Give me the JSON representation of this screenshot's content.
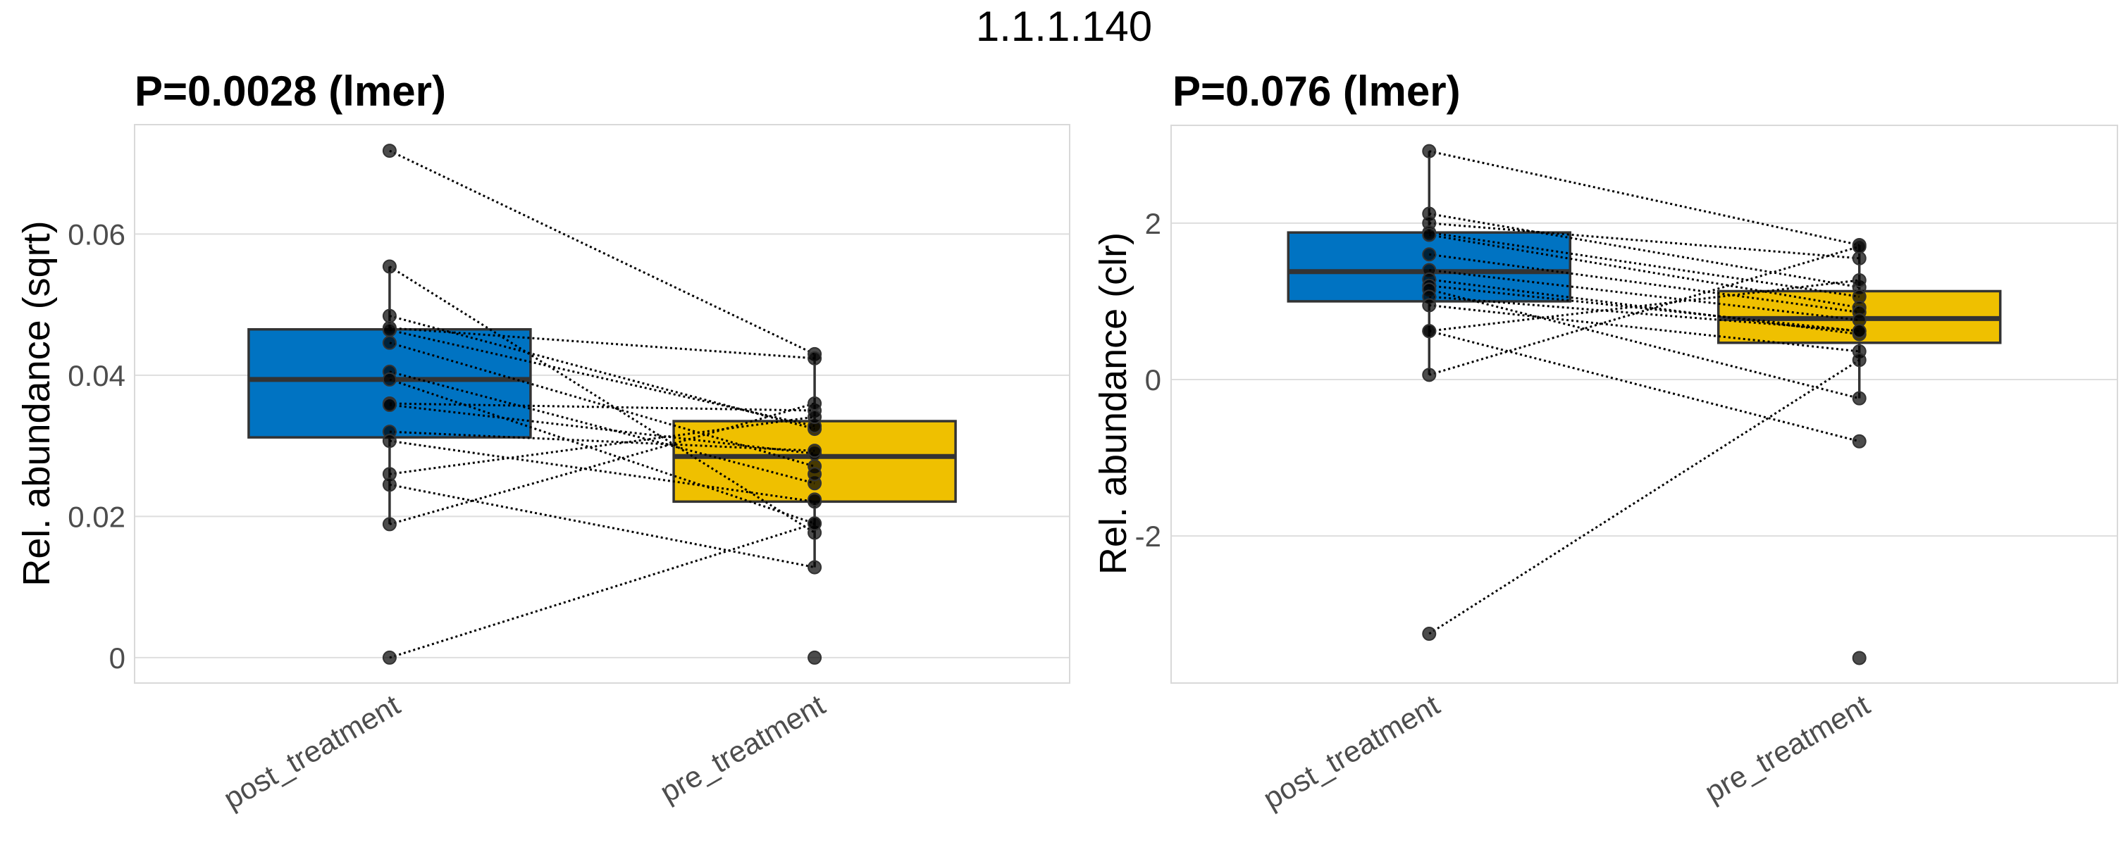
{
  "figure": {
    "title": "1.1.1.140"
  },
  "chart_data": [
    {
      "type": "box",
      "title": "P=0.0028 (lmer)",
      "xlabel": "",
      "ylabel": "Rel. abundance (sqrt)",
      "categories": [
        "post_treatment",
        "pre_treatment"
      ],
      "colors": [
        "#0073C2",
        "#EFC000"
      ],
      "ylim": [
        -0.0036,
        0.0755
      ],
      "yticks": [
        0,
        0.02,
        0.04,
        0.06
      ],
      "ytick_labels": [
        "0",
        "0.02",
        "0.04",
        "0.06"
      ],
      "grid": true,
      "boxes": [
        {
          "category": "post_treatment",
          "q1": 0.0312,
          "median": 0.0394,
          "q3": 0.0465,
          "whisker_low": 0.0189,
          "whisker_high": 0.0554
        },
        {
          "category": "pre_treatment",
          "q1": 0.0221,
          "median": 0.0285,
          "q3": 0.0335,
          "whisker_low": 0.0128,
          "whisker_high": 0.043
        }
      ],
      "pairs": [
        {
          "post": 0.0718,
          "pre": 0.043
        },
        {
          "post": 0.0554,
          "pre": 0.0177
        },
        {
          "post": 0.0484,
          "pre": 0.0324
        },
        {
          "post": 0.0467,
          "pre": 0.0424
        },
        {
          "post": 0.0464,
          "pre": 0.0328
        },
        {
          "post": 0.0446,
          "pre": 0.0271
        },
        {
          "post": 0.0405,
          "pre": 0.0247
        },
        {
          "post": 0.0394,
          "pre": 0.019
        },
        {
          "post": 0.036,
          "pre": 0.035
        },
        {
          "post": 0.0358,
          "pre": 0.0289
        },
        {
          "post": 0.032,
          "pre": 0.0293
        },
        {
          "post": 0.0307,
          "pre": 0.0221
        },
        {
          "post": 0.026,
          "pre": 0.0341
        },
        {
          "post": 0.0245,
          "pre": 0.0128
        },
        {
          "post": 0.0189,
          "pre": 0.036
        },
        {
          "post": 0.0,
          "pre": 0.019
        },
        {
          "post": null,
          "pre": 0.026
        },
        {
          "post": null,
          "pre": 0.0224
        },
        {
          "post": null,
          "pre": 0.0
        }
      ]
    },
    {
      "type": "box",
      "title": "P=0.076 (lmer)",
      "xlabel": "",
      "ylabel": "Rel. abundance (clr)",
      "categories": [
        "post_treatment",
        "pre_treatment"
      ],
      "colors": [
        "#0073C2",
        "#EFC000"
      ],
      "ylim": [
        -3.88,
        3.25
      ],
      "yticks": [
        -2,
        0,
        2
      ],
      "ytick_labels": [
        "-2",
        "0",
        "2"
      ],
      "grid": true,
      "boxes": [
        {
          "category": "post_treatment",
          "q1": 1.0,
          "median": 1.38,
          "q3": 1.88,
          "whisker_low": 0.06,
          "whisker_high": 2.92
        },
        {
          "category": "pre_treatment",
          "q1": 0.47,
          "median": 0.78,
          "q3": 1.13,
          "whisker_low": -0.24,
          "whisker_high": 1.72
        }
      ],
      "pairs": [
        {
          "post": 2.92,
          "pre": 1.72
        },
        {
          "post": 2.12,
          "pre": 1.18
        },
        {
          "post": 2.0,
          "pre": 1.55
        },
        {
          "post": 1.88,
          "pre": 1.06
        },
        {
          "post": 1.85,
          "pre": 0.92
        },
        {
          "post": 1.6,
          "pre": 0.86
        },
        {
          "post": 1.4,
          "pre": 0.76
        },
        {
          "post": 1.28,
          "pre": 0.58
        },
        {
          "post": 1.2,
          "pre": 0.62
        },
        {
          "post": 1.15,
          "pre": -0.24
        },
        {
          "post": 1.06,
          "pre": 0.62
        },
        {
          "post": 0.95,
          "pre": 0.36
        },
        {
          "post": 0.62,
          "pre": 1.27
        },
        {
          "post": 0.62,
          "pre": -0.79
        },
        {
          "post": 0.06,
          "pre": 1.7
        },
        {
          "post": -3.25,
          "pre": 0.25
        },
        {
          "post": null,
          "pre": -3.56
        }
      ]
    }
  ]
}
